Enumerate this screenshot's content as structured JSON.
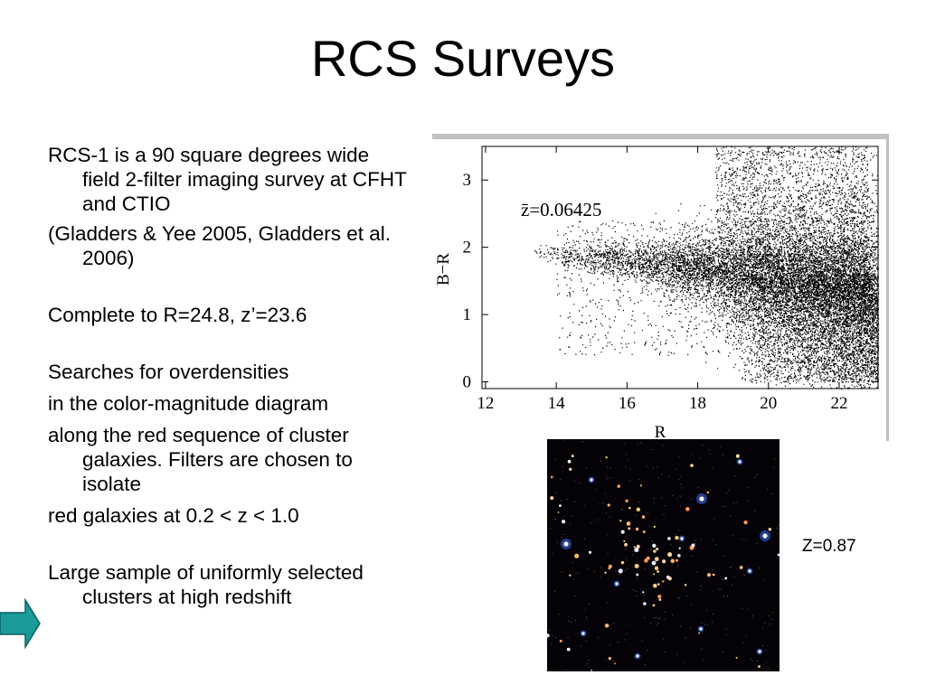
{
  "title": "RCS Surveys",
  "bullets": [
    {
      "text": "RCS-1 is a 90 square degrees wide field 2-filter imaging survey at CFHT and CTIO",
      "gap": 0
    },
    {
      "text": "(Gladders & Yee 2005, Gladders et al. 2006)",
      "gap": 6
    },
    {
      "text": "Complete to R=24.8, z’=23.6",
      "gap": 36
    },
    {
      "text": "Searches for overdensities",
      "gap": 36
    },
    {
      "text": "in the color-magnitude diagram",
      "gap": 8
    },
    {
      "text": "along the red sequence of cluster  galaxies. Filters are chosen to isolate",
      "gap": 8
    },
    {
      "text": "red galaxies at 0.2 < z < 1.0",
      "gap": 8
    },
    {
      "text": "Large sample of uniformly selected clusters at high redshift",
      "gap": 36
    }
  ],
  "arrow_color": "#1b9a9a",
  "image_label": "Z=0.87",
  "chart_data": {
    "type": "scatter",
    "xlabel": "R",
    "ylabel": "B−R",
    "annotation": "z̄=0.06425",
    "xlim": [
      11.9,
      23.1
    ],
    "ylim": [
      -0.1,
      3.5
    ],
    "xticks": [
      12,
      14,
      16,
      18,
      20,
      22
    ],
    "yticks": [
      0,
      1,
      2,
      3
    ],
    "red_sequence": {
      "x": [
        13.5,
        16,
        18,
        20,
        22
      ],
      "y": [
        1.92,
        1.8,
        1.7,
        1.6,
        1.45
      ]
    },
    "point_color": "#000000"
  }
}
